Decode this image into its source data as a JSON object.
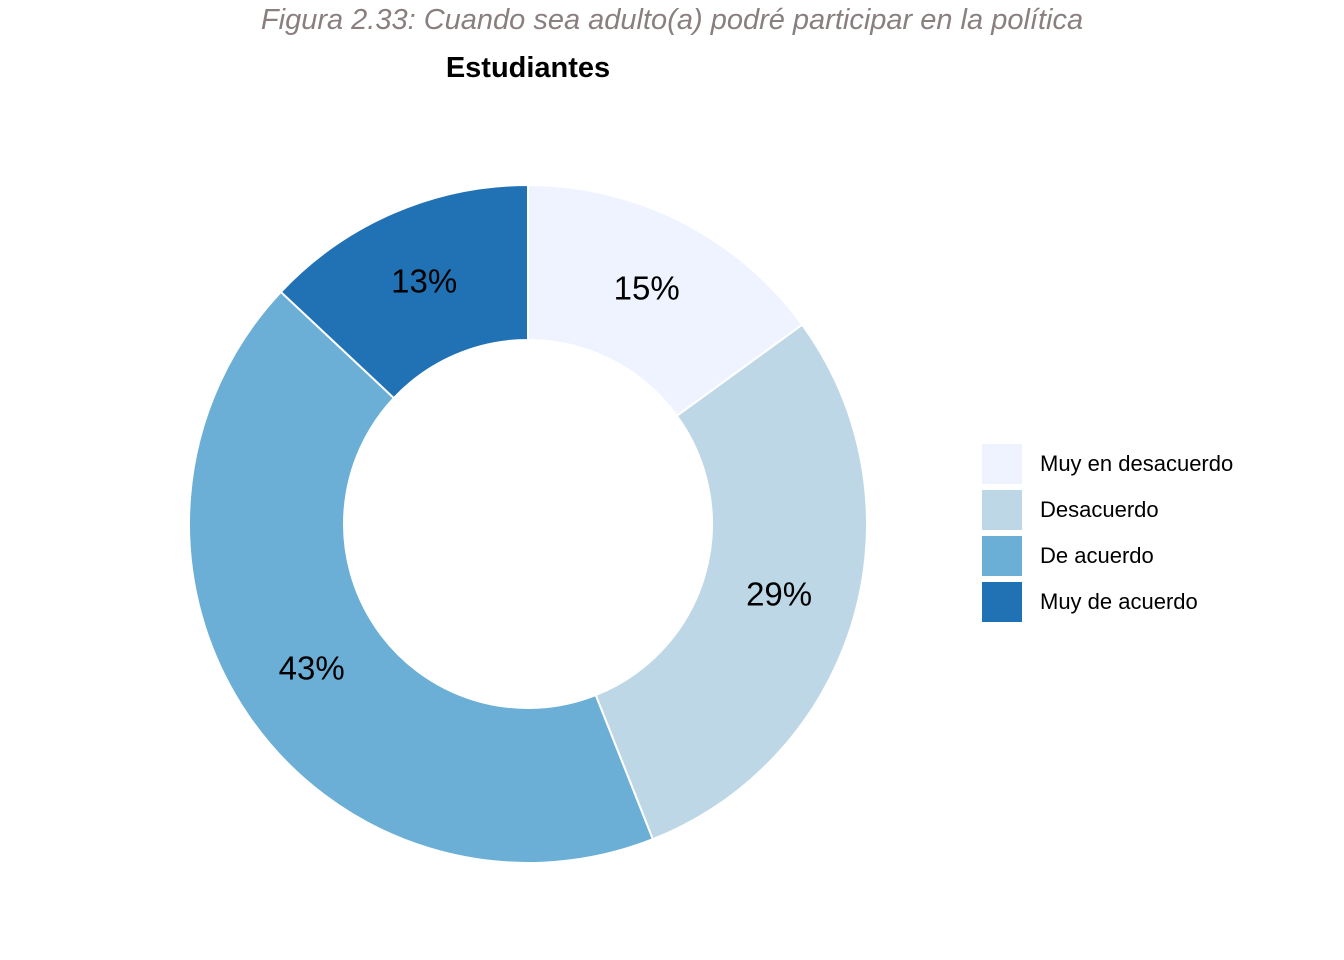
{
  "caption": "Figura 2.33: Cuando sea adulto(a) podré participar en la política",
  "chart_data": {
    "type": "pie",
    "style": "donut",
    "title": "Estudiantes",
    "categories": [
      "Muy en desacuerdo",
      "Desacuerdo",
      "De acuerdo",
      "Muy de acuerdo"
    ],
    "values": [
      15,
      29,
      43,
      13
    ],
    "labels": [
      "15%",
      "29%",
      "43%",
      "13%"
    ],
    "colors": [
      "#eff3ff",
      "#bdd7e7",
      "#6baed6",
      "#2171b5"
    ],
    "legend_position": "right"
  }
}
